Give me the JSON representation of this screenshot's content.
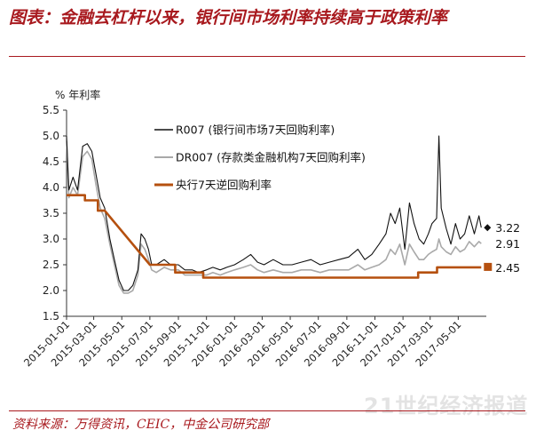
{
  "header": {
    "title": "图表：金融去杠杆以来，银行间市场利率持续高于政策利率"
  },
  "footer": {
    "source": "资料来源：万得资讯，CEIC，中金公司研究部",
    "watermark": "21世纪经济报道"
  },
  "colors": {
    "accent": "#a8191e",
    "r007": "#111111",
    "dr007": "#a9a9a9",
    "policy": "#b5500f"
  },
  "chart_data": {
    "type": "line",
    "ylabel": "% 年利率",
    "ylim": [
      1.5,
      5.5
    ],
    "yticks": [
      "5.5",
      "5.0",
      "4.5",
      "4.0",
      "3.5",
      "3.0",
      "2.5",
      "2.0",
      "1.5"
    ],
    "xlim": [
      "2015-01-01",
      "2017-07-01"
    ],
    "xticks": [
      "2015-01-01",
      "2015-03-01",
      "2015-05-01",
      "2015-07-01",
      "2015-09-01",
      "2015-11-01",
      "2016-01-01",
      "2016-03-01",
      "2016-05-01",
      "2016-07-01",
      "2016-09-01",
      "2016-11-01",
      "2017-01-01",
      "2017-03-01",
      "2017-05-01"
    ],
    "grid": false,
    "legend_position": "top-center",
    "series": [
      {
        "name": "R007 (银行间市场7天回购利率)",
        "style": "thin-black",
        "points": [
          [
            "2015-01-01",
            5.0
          ],
          [
            "2015-01-06",
            3.95
          ],
          [
            "2015-01-15",
            4.2
          ],
          [
            "2015-01-25",
            3.95
          ],
          [
            "2015-02-05",
            4.8
          ],
          [
            "2015-02-15",
            4.85
          ],
          [
            "2015-02-25",
            4.7
          ],
          [
            "2015-03-05",
            4.3
          ],
          [
            "2015-03-15",
            3.8
          ],
          [
            "2015-03-25",
            3.6
          ],
          [
            "2015-04-05",
            3.0
          ],
          [
            "2015-04-15",
            2.6
          ],
          [
            "2015-04-25",
            2.2
          ],
          [
            "2015-05-05",
            2.0
          ],
          [
            "2015-05-15",
            2.0
          ],
          [
            "2015-05-25",
            2.1
          ],
          [
            "2015-06-05",
            2.4
          ],
          [
            "2015-06-12",
            3.1
          ],
          [
            "2015-06-20",
            3.0
          ],
          [
            "2015-06-28",
            2.8
          ],
          [
            "2015-07-05",
            2.5
          ],
          [
            "2015-07-15",
            2.5
          ],
          [
            "2015-08-01",
            2.6
          ],
          [
            "2015-08-15",
            2.5
          ],
          [
            "2015-09-01",
            2.5
          ],
          [
            "2015-09-15",
            2.4
          ],
          [
            "2015-10-01",
            2.4
          ],
          [
            "2015-10-15",
            2.35
          ],
          [
            "2015-11-01",
            2.4
          ],
          [
            "2015-11-15",
            2.45
          ],
          [
            "2015-12-01",
            2.4
          ],
          [
            "2015-12-15",
            2.45
          ],
          [
            "2016-01-01",
            2.5
          ],
          [
            "2016-01-20",
            2.6
          ],
          [
            "2016-02-05",
            2.7
          ],
          [
            "2016-02-20",
            2.55
          ],
          [
            "2016-03-05",
            2.5
          ],
          [
            "2016-03-25",
            2.6
          ],
          [
            "2016-04-15",
            2.5
          ],
          [
            "2016-05-05",
            2.5
          ],
          [
            "2016-05-25",
            2.55
          ],
          [
            "2016-06-15",
            2.6
          ],
          [
            "2016-07-05",
            2.5
          ],
          [
            "2016-07-25",
            2.55
          ],
          [
            "2016-08-15",
            2.6
          ],
          [
            "2016-09-05",
            2.65
          ],
          [
            "2016-09-25",
            2.8
          ],
          [
            "2016-10-10",
            2.6
          ],
          [
            "2016-10-25",
            2.7
          ],
          [
            "2016-11-10",
            2.9
          ],
          [
            "2016-11-25",
            3.1
          ],
          [
            "2016-12-05",
            3.5
          ],
          [
            "2016-12-15",
            3.3
          ],
          [
            "2016-12-25",
            3.6
          ],
          [
            "2017-01-05",
            2.8
          ],
          [
            "2017-01-15",
            3.7
          ],
          [
            "2017-01-25",
            3.3
          ],
          [
            "2017-02-05",
            3.0
          ],
          [
            "2017-02-15",
            2.9
          ],
          [
            "2017-02-25",
            3.1
          ],
          [
            "2017-03-05",
            3.3
          ],
          [
            "2017-03-15",
            3.4
          ],
          [
            "2017-03-20",
            5.0
          ],
          [
            "2017-03-25",
            3.6
          ],
          [
            "2017-04-05",
            3.2
          ],
          [
            "2017-04-15",
            2.9
          ],
          [
            "2017-04-25",
            3.3
          ],
          [
            "2017-05-05",
            3.0
          ],
          [
            "2017-05-15",
            3.1
          ],
          [
            "2017-05-25",
            3.45
          ],
          [
            "2017-06-05",
            3.1
          ],
          [
            "2017-06-15",
            3.45
          ],
          [
            "2017-06-20",
            3.22
          ]
        ]
      },
      {
        "name": "DR007 (存款类金融机构7天回购利率)",
        "style": "thin-gray",
        "points": [
          [
            "2015-01-01",
            4.9
          ],
          [
            "2015-01-06",
            3.8
          ],
          [
            "2015-01-15",
            4.0
          ],
          [
            "2015-01-25",
            3.85
          ],
          [
            "2015-02-05",
            4.6
          ],
          [
            "2015-02-15",
            4.7
          ],
          [
            "2015-02-25",
            4.55
          ],
          [
            "2015-03-05",
            4.1
          ],
          [
            "2015-03-15",
            3.6
          ],
          [
            "2015-03-25",
            3.4
          ],
          [
            "2015-04-05",
            2.9
          ],
          [
            "2015-04-15",
            2.5
          ],
          [
            "2015-04-25",
            2.1
          ],
          [
            "2015-05-05",
            1.95
          ],
          [
            "2015-05-15",
            1.95
          ],
          [
            "2015-05-25",
            2.0
          ],
          [
            "2015-06-05",
            2.3
          ],
          [
            "2015-06-12",
            2.9
          ],
          [
            "2015-06-20",
            2.8
          ],
          [
            "2015-06-28",
            2.6
          ],
          [
            "2015-07-05",
            2.4
          ],
          [
            "2015-07-15",
            2.35
          ],
          [
            "2015-08-01",
            2.45
          ],
          [
            "2015-08-15",
            2.4
          ],
          [
            "2015-09-01",
            2.4
          ],
          [
            "2015-09-15",
            2.3
          ],
          [
            "2015-10-01",
            2.3
          ],
          [
            "2015-10-15",
            2.3
          ],
          [
            "2015-11-01",
            2.3
          ],
          [
            "2015-11-15",
            2.35
          ],
          [
            "2015-12-01",
            2.3
          ],
          [
            "2015-12-15",
            2.35
          ],
          [
            "2016-01-01",
            2.4
          ],
          [
            "2016-01-20",
            2.45
          ],
          [
            "2016-02-05",
            2.5
          ],
          [
            "2016-02-20",
            2.4
          ],
          [
            "2016-03-05",
            2.35
          ],
          [
            "2016-03-25",
            2.4
          ],
          [
            "2016-04-15",
            2.35
          ],
          [
            "2016-05-05",
            2.35
          ],
          [
            "2016-05-25",
            2.4
          ],
          [
            "2016-06-15",
            2.4
          ],
          [
            "2016-07-05",
            2.35
          ],
          [
            "2016-07-25",
            2.4
          ],
          [
            "2016-08-15",
            2.4
          ],
          [
            "2016-09-05",
            2.4
          ],
          [
            "2016-09-25",
            2.5
          ],
          [
            "2016-10-10",
            2.4
          ],
          [
            "2016-10-25",
            2.45
          ],
          [
            "2016-11-10",
            2.5
          ],
          [
            "2016-11-25",
            2.6
          ],
          [
            "2016-12-05",
            2.8
          ],
          [
            "2016-12-15",
            2.7
          ],
          [
            "2016-12-25",
            2.9
          ],
          [
            "2017-01-05",
            2.5
          ],
          [
            "2017-01-15",
            2.9
          ],
          [
            "2017-01-25",
            2.75
          ],
          [
            "2017-02-05",
            2.6
          ],
          [
            "2017-02-15",
            2.6
          ],
          [
            "2017-02-25",
            2.7
          ],
          [
            "2017-03-05",
            2.75
          ],
          [
            "2017-03-15",
            2.8
          ],
          [
            "2017-03-20",
            3.0
          ],
          [
            "2017-03-25",
            2.85
          ],
          [
            "2017-04-05",
            2.75
          ],
          [
            "2017-04-15",
            2.7
          ],
          [
            "2017-04-25",
            2.85
          ],
          [
            "2017-05-05",
            2.75
          ],
          [
            "2017-05-15",
            2.8
          ],
          [
            "2017-05-25",
            2.95
          ],
          [
            "2017-06-05",
            2.85
          ],
          [
            "2017-06-15",
            2.95
          ],
          [
            "2017-06-20",
            2.91
          ]
        ]
      },
      {
        "name": "央行7天逆回购利率",
        "style": "thick-orange-step",
        "points": [
          [
            "2015-01-01",
            3.85
          ],
          [
            "2015-02-10",
            3.85
          ],
          [
            "2015-02-10",
            3.75
          ],
          [
            "2015-03-10",
            3.75
          ],
          [
            "2015-03-10",
            3.55
          ],
          [
            "2015-03-25",
            3.55
          ],
          [
            "2015-07-01",
            2.5
          ],
          [
            "2015-08-25",
            2.5
          ],
          [
            "2015-08-25",
            2.35
          ],
          [
            "2015-10-25",
            2.35
          ],
          [
            "2015-10-25",
            2.25
          ],
          [
            "2016-12-25",
            2.25
          ],
          [
            "2017-02-03",
            2.25
          ],
          [
            "2017-02-03",
            2.35
          ],
          [
            "2017-03-16",
            2.35
          ],
          [
            "2017-03-16",
            2.45
          ],
          [
            "2017-06-20",
            2.45
          ]
        ]
      }
    ],
    "end_labels": [
      {
        "series": "R007 (银行间市场7天回购利率)",
        "text": "3.22",
        "value": 3.22,
        "marker": "diamond"
      },
      {
        "series": "DR007 (存款类金融机构7天回购利率)",
        "text": "2.91",
        "value": 2.91,
        "marker": "none"
      },
      {
        "series": "央行7天逆回购利率",
        "text": "2.45",
        "value": 2.45,
        "marker": "square"
      }
    ]
  }
}
